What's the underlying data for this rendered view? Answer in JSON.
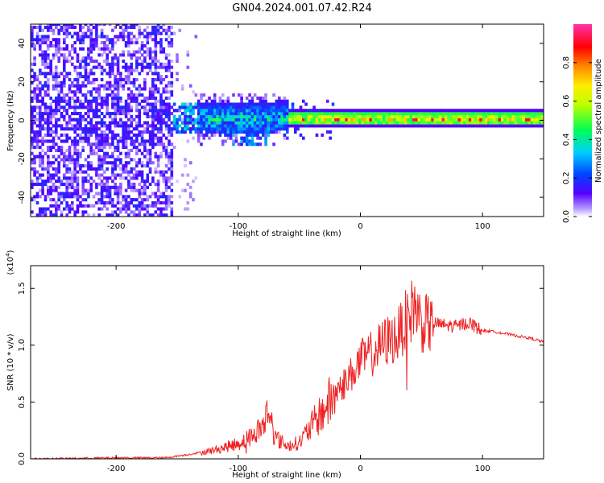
{
  "title": "GN04.2024.001.07.42.R24",
  "chart_data": [
    {
      "type": "heatmap",
      "xlabel": "Height of straight line (km)",
      "ylabel": "Frequency (Hz)",
      "xlim": [
        -270,
        150
      ],
      "ylim": [
        -50,
        50
      ],
      "xticks": [
        -200,
        -100,
        0,
        100
      ],
      "yticks": [
        -40,
        -20,
        0,
        20,
        40
      ],
      "colorbar": {
        "label": "Normalized spectral amplitude",
        "range": [
          0.0,
          1.0
        ],
        "ticks": [
          0.0,
          0.2,
          0.4,
          0.6,
          0.8
        ],
        "colors": [
          "#ffffff",
          "#5500ff",
          "#0044ff",
          "#00ccff",
          "#00ff55",
          "#bbff00",
          "#ffee00",
          "#ff8800",
          "#ff0000",
          "#ff33aa"
        ]
      },
      "regions": [
        {
          "x": [
            -270,
            -155
          ],
          "freq_spread": 50,
          "amplitude": 0.05,
          "description": "broadband noise"
        },
        {
          "x": [
            -155,
            -60
          ],
          "center_freq": 0,
          "freq_spread": 8,
          "amplitude": 0.3
        },
        {
          "x": [
            -60,
            150
          ],
          "center_freq": 0,
          "freq_spread": 3,
          "amplitude": 0.6
        }
      ]
    },
    {
      "type": "line",
      "xlabel": "Height of straight line (km)",
      "ylabel": "SNR (10 * v/v)",
      "y_multiplier": "(x10^4)",
      "xlim": [
        -270,
        150
      ],
      "ylim": [
        0,
        1.7
      ],
      "xticks": [
        -200,
        -100,
        0,
        100
      ],
      "yticks": [
        0.0,
        0.5,
        1.0,
        1.5
      ],
      "line_color": "#ee2222",
      "series": [
        {
          "x": [
            -270,
            -200,
            -160,
            -140,
            -120,
            -110,
            -100,
            -90,
            -80,
            -75,
            -70,
            -60,
            -50,
            -40,
            -30,
            -20,
            -10,
            0,
            10,
            20,
            30,
            35,
            40,
            45,
            50,
            60,
            70,
            80,
            85,
            90,
            100,
            110,
            120,
            130,
            140,
            150
          ],
          "values": [
            0.0,
            0.01,
            0.01,
            0.04,
            0.08,
            0.11,
            0.14,
            0.2,
            0.3,
            0.45,
            0.2,
            0.12,
            0.15,
            0.3,
            0.45,
            0.6,
            0.72,
            0.88,
            0.95,
            1.05,
            1.1,
            1.2,
            1.3,
            1.38,
            1.22,
            1.2,
            1.18,
            1.17,
            1.2,
            1.2,
            1.13,
            1.12,
            1.1,
            1.08,
            1.06,
            1.03
          ]
        }
      ]
    }
  ]
}
